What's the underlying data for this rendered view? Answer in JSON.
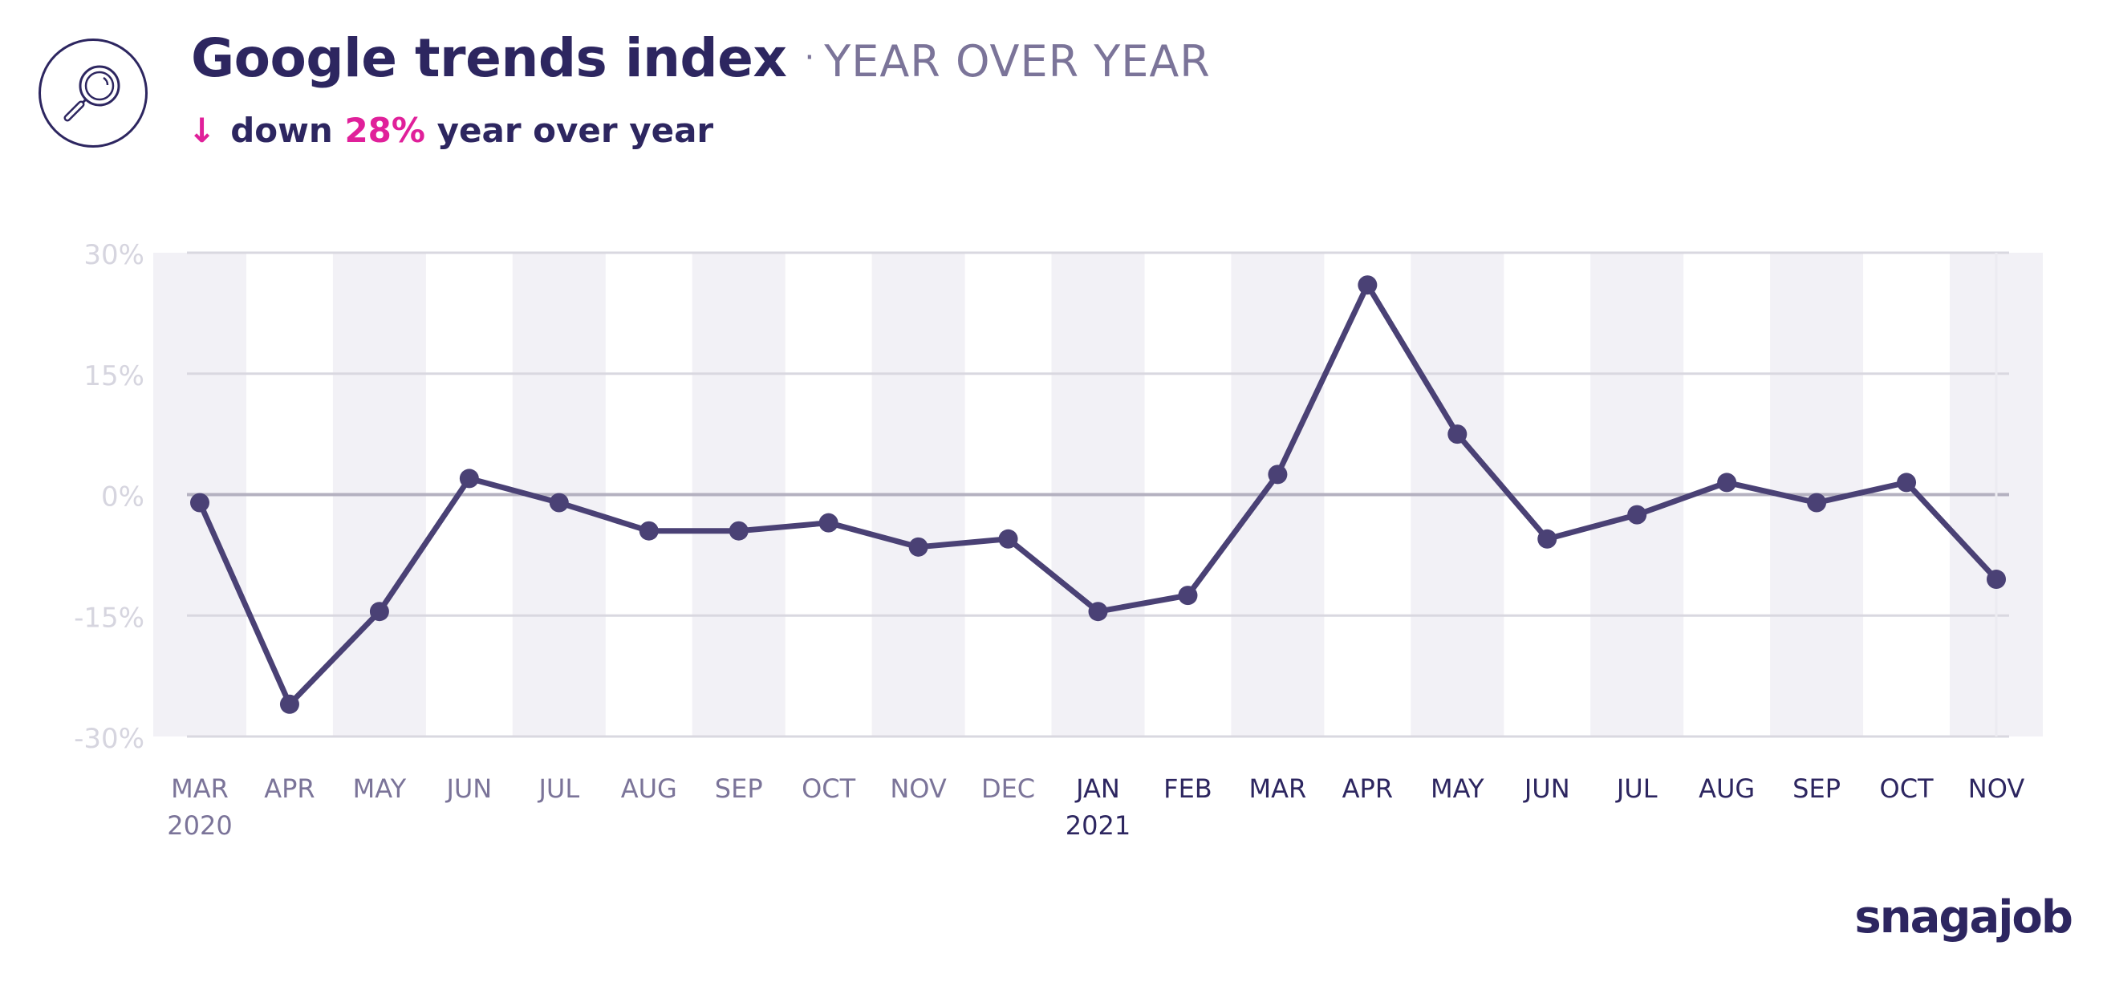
{
  "header": {
    "title": "Google trends index",
    "separator": "·",
    "subtitle": "YEAR OVER YEAR",
    "summary_arrow": "↓",
    "summary_prefix": "down",
    "summary_value": "28%",
    "summary_suffix": "year over year",
    "logo_icon": "magnifying-glass-icon"
  },
  "brand": {
    "name": "snagajob"
  },
  "colors": {
    "navy": "#2d2660",
    "line": "#4a4175",
    "accent": "#e0209a",
    "muted": "#7b7499",
    "band": "#f2f1f6",
    "grid": "#d9d8e0",
    "zero": "#b4b1c0",
    "ytick": "#d6d5df"
  },
  "chart_data": {
    "type": "line",
    "categories": [
      "MAR",
      "APR",
      "MAY",
      "JUN",
      "JUL",
      "AUG",
      "SEP",
      "OCT",
      "NOV",
      "DEC",
      "JAN",
      "FEB",
      "MAR",
      "APR",
      "MAY",
      "JUN",
      "JUL",
      "AUG",
      "SEP",
      "OCT",
      "NOV"
    ],
    "year_labels": [
      {
        "index": 0,
        "label": "2020"
      },
      {
        "index": 10,
        "label": "2021"
      }
    ],
    "series": [
      {
        "values": [
          -1,
          -26,
          -14.5,
          2,
          -1,
          -4.5,
          -4.5,
          -3.5,
          -6.5,
          -5.5,
          -14.5,
          -12.5,
          2.5,
          26,
          7.5,
          -5.5,
          -2.5,
          1.5,
          -1,
          1.5,
          -10.5
        ]
      }
    ],
    "y_ticks": [
      "30%",
      "15%",
      "0%",
      "-15%",
      "-30%"
    ],
    "y_tick_values": [
      30,
      15,
      0,
      -15,
      -30
    ],
    "ylim": [
      -30,
      30
    ],
    "grid": true,
    "alternating_column_bands": true
  }
}
